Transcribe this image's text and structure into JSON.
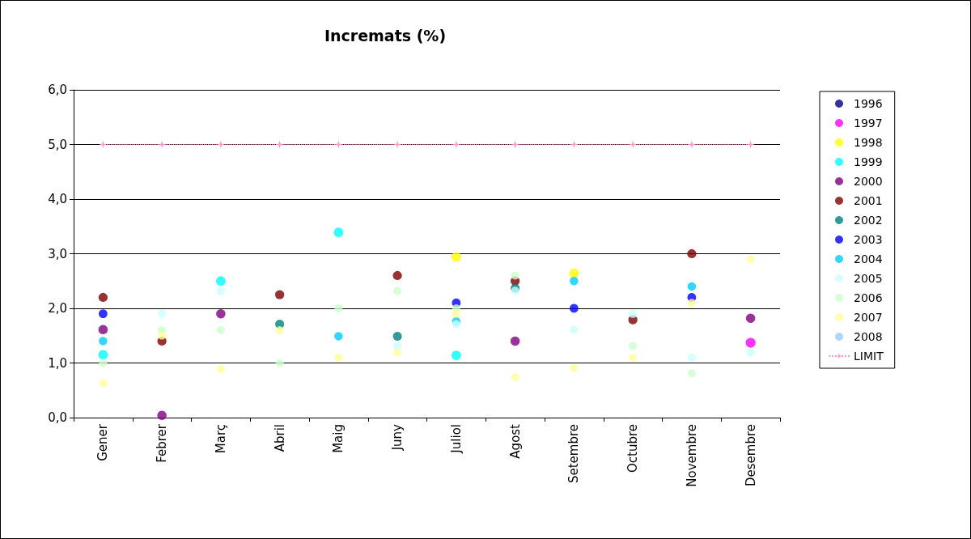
{
  "chart_data": {
    "type": "scatter",
    "title": "Incremats (%)",
    "categories": [
      "Gener",
      "Febrer",
      "Març",
      "Abril",
      "Maig",
      "Juny",
      "Juliol",
      "Agost",
      "Setembre",
      "Octubre",
      "Novembre",
      "Desembre"
    ],
    "ylim": [
      0,
      6
    ],
    "yticks": [
      {
        "value": 0,
        "label": "0,0"
      },
      {
        "value": 1,
        "label": "1,0"
      },
      {
        "value": 2,
        "label": "2,0"
      },
      {
        "value": 3,
        "label": "3,0"
      },
      {
        "value": 4,
        "label": "4,0"
      },
      {
        "value": 5,
        "label": "5,0"
      },
      {
        "value": 6,
        "label": "6,0"
      }
    ],
    "grid": "y",
    "legend": "right",
    "marker": "circle",
    "series": [
      {
        "name": "1996",
        "color": "#000080",
        "values": [
          null,
          null,
          null,
          null,
          null,
          null,
          null,
          null,
          null,
          null,
          null,
          null
        ]
      },
      {
        "name": "1997",
        "color": "#ff00ff",
        "values": [
          null,
          null,
          null,
          null,
          null,
          null,
          null,
          null,
          null,
          null,
          null,
          1.37
        ]
      },
      {
        "name": "1998",
        "color": "#ffff00",
        "values": [
          null,
          null,
          null,
          null,
          null,
          null,
          2.94,
          null,
          2.64,
          null,
          null,
          null
        ]
      },
      {
        "name": "1999",
        "color": "#00ffff",
        "values": [
          1.15,
          null,
          2.5,
          null,
          3.39,
          null,
          1.14,
          null,
          null,
          null,
          null,
          null
        ]
      },
      {
        "name": "2000",
        "color": "#800080",
        "values": [
          1.61,
          0.04,
          1.9,
          null,
          null,
          null,
          null,
          1.4,
          null,
          null,
          null,
          1.82
        ]
      },
      {
        "name": "2001",
        "color": "#800000",
        "values": [
          2.2,
          1.4,
          null,
          2.25,
          null,
          2.6,
          null,
          2.5,
          null,
          1.79,
          3.0,
          null
        ]
      },
      {
        "name": "2002",
        "color": "#008080",
        "values": [
          null,
          null,
          null,
          1.71,
          null,
          1.49,
          null,
          2.37,
          null,
          null,
          null,
          null
        ]
      },
      {
        "name": "2003",
        "color": "#0000ff",
        "values": [
          1.9,
          null,
          null,
          null,
          null,
          null,
          2.1,
          null,
          2.0,
          null,
          2.2,
          null
        ]
      },
      {
        "name": "2004",
        "color": "#00ccff",
        "values": [
          1.4,
          null,
          null,
          null,
          1.49,
          null,
          1.76,
          null,
          2.5,
          null,
          2.4,
          null
        ]
      },
      {
        "name": "2005",
        "color": "#ccffff",
        "values": [
          null,
          1.9,
          2.32,
          null,
          null,
          1.31,
          1.71,
          2.32,
          1.61,
          1.9,
          1.1,
          1.19
        ]
      },
      {
        "name": "2006",
        "color": "#ccffcc",
        "values": [
          1.0,
          1.6,
          1.6,
          1.0,
          2.0,
          2.32,
          2.0,
          2.6,
          null,
          1.31,
          0.81,
          null
        ]
      },
      {
        "name": "2007",
        "color": "#ffff99",
        "values": [
          0.63,
          1.5,
          0.89,
          1.6,
          1.1,
          1.19,
          1.9,
          0.74,
          0.91,
          1.1,
          2.1,
          2.9
        ]
      },
      {
        "name": "2008",
        "color": "#99ccff",
        "values": [
          null,
          null,
          null,
          null,
          null,
          null,
          null,
          null,
          null,
          null,
          null,
          null
        ]
      },
      {
        "name": "LIMIT",
        "type": "line",
        "color": "#ff99cc",
        "marker": "star",
        "line_style": "dotted",
        "values": [
          5,
          5,
          5,
          5,
          5,
          5,
          5,
          5,
          5,
          5,
          5,
          5
        ]
      }
    ]
  }
}
